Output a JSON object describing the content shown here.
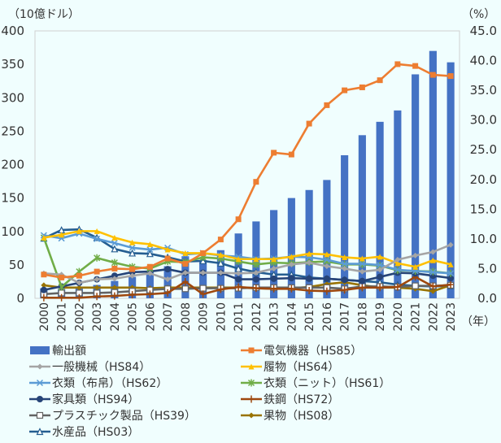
{
  "chart_data": {
    "type": "bar+line",
    "title": "",
    "left_axis_unit": "（10億ドル）",
    "right_axis_unit": "（%）",
    "x_unit": "（年）",
    "categories": [
      "2000",
      "2001",
      "2002",
      "2003",
      "2004",
      "2005",
      "2006",
      "2007",
      "2008",
      "2009",
      "2010",
      "2011",
      "2012",
      "2013",
      "2014",
      "2015",
      "2016",
      "2017",
      "2018",
      "2019",
      "2020",
      "2021",
      "2022",
      "2023"
    ],
    "left_ylim": [
      0,
      400
    ],
    "left_ticks": [
      "0",
      "50",
      "100",
      "150",
      "200",
      "250",
      "300",
      "350",
      "400"
    ],
    "right_ylim": [
      0,
      45
    ],
    "right_ticks": [
      "0.0",
      "5.0",
      "10.0",
      "15.0",
      "20.0",
      "25.0",
      "30.0",
      "35.0",
      "40.0",
      "45.0"
    ],
    "bar_series": {
      "name": "輸出額",
      "color": "#4472c4",
      "axis": "left",
      "values": [
        15,
        14,
        15,
        20,
        26,
        32,
        40,
        48,
        63,
        57,
        72,
        97,
        115,
        132,
        150,
        162,
        177,
        214,
        244,
        264,
        281,
        335,
        370,
        353
      ]
    },
    "series": [
      {
        "name": "電気機器（HS85）",
        "color": "#ed7d31",
        "marker": "square",
        "axis": "right",
        "values": [
          4.0,
          3.5,
          3.8,
          4.5,
          5.0,
          4.9,
          5.3,
          6.7,
          5.8,
          7.6,
          9.9,
          13.3,
          19.6,
          24.5,
          24.2,
          29.4,
          32.5,
          35.0,
          35.5,
          36.7,
          39.4,
          39.1,
          37.6,
          37.4
        ]
      },
      {
        "name": "一般機械（HS84）",
        "color": "#a5a5a5",
        "marker": "diamond",
        "axis": "right",
        "values": [
          4.2,
          4.0,
          2.6,
          3.2,
          3.3,
          3.8,
          4.2,
          3.2,
          4.3,
          4.3,
          4.3,
          4.2,
          4.3,
          5.0,
          5.7,
          6.0,
          5.4,
          5.0,
          4.5,
          4.8,
          6.5,
          7.2,
          7.8,
          9.0
        ]
      },
      {
        "name": "履物（HS64）",
        "color": "#ffc000",
        "marker": "triangle",
        "axis": "right",
        "values": [
          10.2,
          10.7,
          11.3,
          11.3,
          10.2,
          9.4,
          9.1,
          8.2,
          7.6,
          7.6,
          7.3,
          6.6,
          6.6,
          6.6,
          7.0,
          7.5,
          7.4,
          6.9,
          6.7,
          7.0,
          5.9,
          5.3,
          6.4,
          5.7
        ]
      },
      {
        "name": "衣類（布帛）（HS62）",
        "color": "#5b9bd5",
        "marker": "x",
        "axis": "right",
        "values": [
          10.6,
          10.1,
          10.9,
          10.0,
          9.3,
          8.5,
          8.2,
          8.5,
          7.4,
          7.6,
          7.2,
          7.0,
          6.6,
          6.7,
          7.0,
          6.9,
          6.5,
          5.8,
          5.8,
          5.6,
          4.8,
          4.6,
          4.4,
          4.2
        ]
      },
      {
        "name": "衣類（ニット）（HS61）",
        "color": "#70ad47",
        "marker": "star",
        "axis": "right",
        "values": [
          10.2,
          1.9,
          4.5,
          6.8,
          6.0,
          5.3,
          5.0,
          6.2,
          6.1,
          6.9,
          6.7,
          6.2,
          5.7,
          6.0,
          5.9,
          6.1,
          6.2,
          5.7,
          5.7,
          5.5,
          4.7,
          4.6,
          4.5,
          4.2
        ]
      },
      {
        "name": "家具類（HS94）",
        "color": "#264478",
        "marker": "circle",
        "axis": "right",
        "values": [
          1.4,
          2.0,
          2.6,
          3.2,
          3.8,
          4.4,
          4.5,
          4.9,
          4.3,
          4.3,
          4.3,
          3.2,
          3.2,
          3.3,
          3.4,
          3.3,
          3.3,
          3.1,
          2.9,
          3.6,
          4.3,
          4.2,
          3.8,
          3.4
        ]
      },
      {
        "name": "鉄鋼（HS72）",
        "color": "#9e480e",
        "marker": "plus",
        "axis": "right",
        "values": [
          0.1,
          0.1,
          0.1,
          0.3,
          0.4,
          0.6,
          0.7,
          0.9,
          2.8,
          0.7,
          1.5,
          1.9,
          1.7,
          1.6,
          1.6,
          1.3,
          1.2,
          1.4,
          1.8,
          1.8,
          1.9,
          3.6,
          2.0,
          2.3
        ]
      },
      {
        "name": "プラスチック製品（HS39）",
        "color": "#636363",
        "marker": "square-open",
        "axis": "right",
        "values": [
          0.7,
          0.9,
          0.9,
          0.9,
          1.0,
          1.2,
          1.4,
          1.6,
          1.6,
          1.7,
          1.7,
          1.7,
          1.8,
          1.8,
          1.8,
          1.8,
          1.8,
          1.6,
          2.0,
          2.0,
          1.9,
          2.1,
          2.1,
          2.2
        ]
      },
      {
        "name": "果物（HS08）",
        "color": "#997300",
        "marker": "diamond",
        "axis": "right",
        "values": [
          2.2,
          1.8,
          1.8,
          1.8,
          1.8,
          1.8,
          1.7,
          1.8,
          1.8,
          1.8,
          1.8,
          1.8,
          1.7,
          1.6,
          1.7,
          1.9,
          2.4,
          2.7,
          2.2,
          1.8,
          1.8,
          1.6,
          1.2,
          2.2
        ]
      },
      {
        "name": "水産品（HS03）",
        "color": "#255e91",
        "marker": "triangle-open",
        "axis": "right",
        "values": [
          10.1,
          11.5,
          11.6,
          10.2,
          8.3,
          7.6,
          7.5,
          6.9,
          6.2,
          6.3,
          5.9,
          5.0,
          4.4,
          4.0,
          4.0,
          3.5,
          3.3,
          3.1,
          2.9,
          2.7,
          2.3,
          2.1,
          2.0,
          2.1
        ]
      }
    ],
    "grid": false,
    "legend_position": "bottom"
  }
}
